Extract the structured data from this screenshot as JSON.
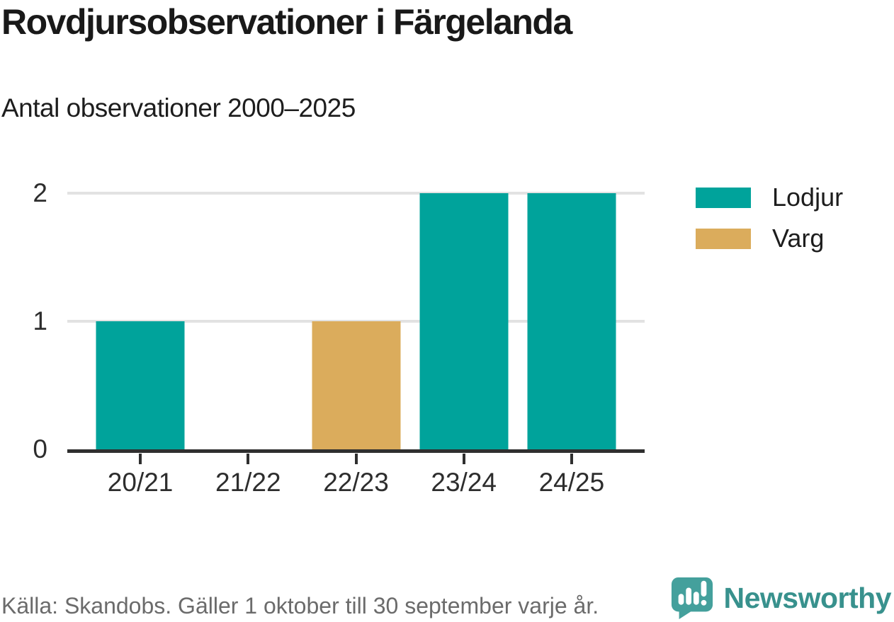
{
  "header": {
    "title": "Rovdjursobservationer i Färgelanda",
    "subtitle": "Antal observationer 2000–2025"
  },
  "chart_data": {
    "type": "bar",
    "title": "Rovdjursobservationer i Färgelanda",
    "subtitle": "Antal observationer 2000–2025",
    "categories": [
      "20/21",
      "21/22",
      "22/23",
      "23/24",
      "24/25"
    ],
    "series": [
      {
        "name": "Lodjur",
        "color": "#00A39B",
        "values": [
          1,
          0,
          null,
          2,
          2
        ]
      },
      {
        "name": "Varg",
        "color": "#DBAC5C",
        "values": [
          null,
          0,
          1,
          null,
          null
        ]
      }
    ],
    "xlabel": "",
    "ylabel": "",
    "y_ticks": [
      0,
      1,
      2
    ],
    "ylim": [
      0,
      2
    ],
    "grid": "horizontal-gridlines-on",
    "legend_position": "right"
  },
  "footer": {
    "source": "Källa: Skandobs. Gäller 1 oktober till 30 september varje år.",
    "brand": "Newsworthy"
  },
  "colors": {
    "lodjur": "#00A39B",
    "varg": "#DBAC5C",
    "brand": "#38918D",
    "brand_bubble": "#44A09C",
    "grid": "#E2E2E2",
    "axis": "#2F2F2F",
    "text": "#1D1D1D",
    "muted": "#6B6B6B"
  }
}
